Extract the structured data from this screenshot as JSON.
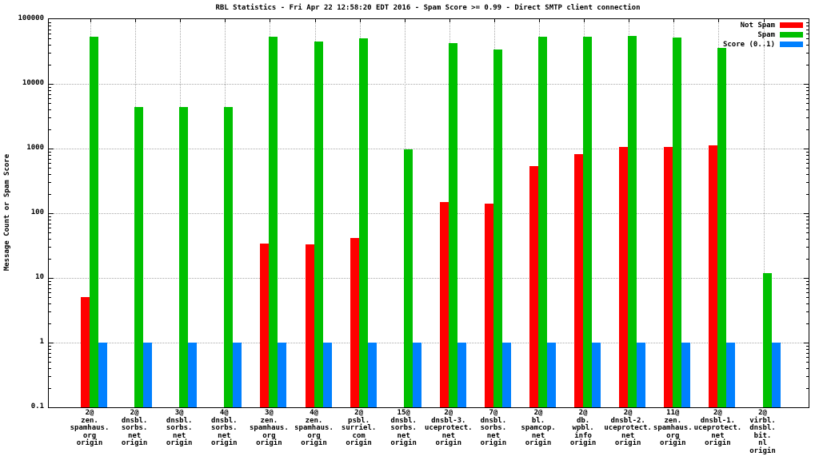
{
  "chart_data": {
    "type": "bar",
    "title": "RBL Statistics - Fri Apr 22 12:58:20 EDT 2016 - Spam Score >= 0.99 - Direct SMTP client connection",
    "ylabel": "Message Count or Spam Score",
    "yscale": "log",
    "ylim": [
      0.1,
      100000
    ],
    "ytick_labels": [
      "0.1",
      "1",
      "10",
      "100",
      "1000",
      "10000",
      "100000"
    ],
    "grid": true,
    "legend_position": "top-right-inside",
    "axis_color": "#000000",
    "grid_color": "#a8a8a8",
    "categories": [
      [
        "2@",
        "zen.",
        "spamhaus.",
        "org",
        "origin"
      ],
      [
        "2@",
        "dnsbl.",
        "sorbs.",
        "net",
        "origin"
      ],
      [
        "3@",
        "dnsbl.",
        "sorbs.",
        "net",
        "origin"
      ],
      [
        "4@",
        "dnsbl.",
        "sorbs.",
        "net",
        "origin"
      ],
      [
        "3@",
        "zen.",
        "spamhaus.",
        "org",
        "origin"
      ],
      [
        "4@",
        "zen.",
        "spamhaus.",
        "org",
        "origin"
      ],
      [
        "2@",
        "psbl.",
        "surriel.",
        "com",
        "origin"
      ],
      [
        "15@",
        "dnsbl.",
        "sorbs.",
        "net",
        "origin"
      ],
      [
        "2@",
        "dnsbl-3.",
        "uceprotect.",
        "net",
        "origin"
      ],
      [
        "7@",
        "dnsbl.",
        "sorbs.",
        "net",
        "origin"
      ],
      [
        "2@",
        "bl.",
        "spamcop.",
        "net",
        "origin"
      ],
      [
        "2@",
        "db.",
        "wpbl.",
        "info",
        "origin"
      ],
      [
        "2@",
        "dnsbl-2.",
        "uceprotect.",
        "net",
        "origin"
      ],
      [
        "11@",
        "zen.",
        "spamhaus.",
        "org",
        "origin"
      ],
      [
        "2@",
        "dnsbl-1.",
        "uceprotect.",
        "net",
        "origin"
      ],
      [
        "2@",
        "virbl.",
        "dnsbl.",
        "bit.",
        "nl",
        "origin"
      ]
    ],
    "series": [
      {
        "name": "Not Spam",
        "color": "#ff0000",
        "values": [
          5,
          0,
          0,
          0,
          34,
          33,
          42,
          0,
          150,
          140,
          540,
          820,
          1060,
          1060,
          1120,
          0
        ]
      },
      {
        "name": "Spam",
        "color": "#00c000",
        "values": [
          53500,
          4400,
          4400,
          4400,
          53500,
          45000,
          50000,
          970,
          43000,
          33500,
          53500,
          53500,
          55000,
          52000,
          35500,
          12
        ]
      },
      {
        "name": "Score (0..1)",
        "color": "#0080ff",
        "values": [
          1,
          1,
          1,
          1,
          1,
          1,
          1,
          1,
          1,
          1,
          1,
          1,
          1,
          1,
          1,
          1
        ]
      }
    ]
  }
}
